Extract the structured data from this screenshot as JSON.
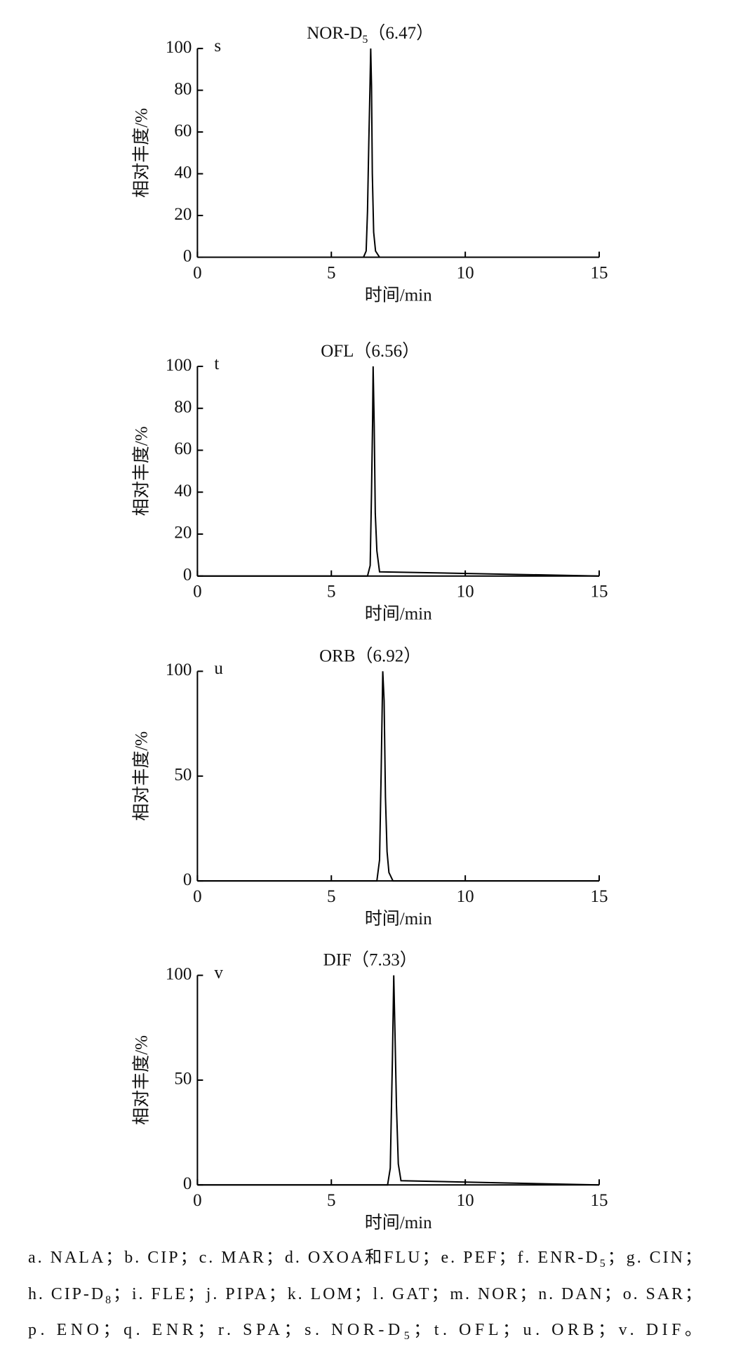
{
  "chart_data": [
    {
      "type": "line",
      "panel_label": "s",
      "title": [
        "NOR-D",
        "5",
        "（6.47）"
      ],
      "ylabel": "相对丰度/%",
      "xlabel": "时间/min",
      "x": [
        0,
        6.2,
        6.3,
        6.35,
        6.4,
        6.44,
        6.47,
        6.5,
        6.53,
        6.58,
        6.65,
        6.8,
        15
      ],
      "values": [
        0,
        0,
        3,
        22,
        56,
        80,
        100,
        82,
        40,
        12,
        3,
        0,
        0
      ],
      "color": "#000000",
      "xlim": [
        0,
        15
      ],
      "xticks": [
        0,
        5,
        10,
        15
      ],
      "ylim": [
        0,
        100
      ],
      "yticks": [
        0,
        20,
        40,
        60,
        80,
        100
      ]
    },
    {
      "type": "line",
      "panel_label": "t",
      "title": [
        "OFL（6.56）"
      ],
      "ylabel": "相对丰度/%",
      "xlabel": "时间/min",
      "x": [
        0,
        6.35,
        6.45,
        6.5,
        6.54,
        6.56,
        6.6,
        6.64,
        6.7,
        6.8,
        15
      ],
      "values": [
        0,
        0,
        5,
        40,
        74,
        100,
        72,
        30,
        12,
        2,
        0
      ],
      "color": "#000000",
      "xlim": [
        0,
        15
      ],
      "xticks": [
        0,
        5,
        10,
        15
      ],
      "ylim": [
        0,
        100
      ],
      "yticks": [
        0,
        20,
        40,
        60,
        80,
        100
      ]
    },
    {
      "type": "line",
      "panel_label": "u",
      "title": [
        "ORB（6.92）"
      ],
      "ylabel": "相对丰度/%",
      "xlabel": "时间/min",
      "x": [
        0,
        6.7,
        6.8,
        6.86,
        6.92,
        6.97,
        7.02,
        7.08,
        7.15,
        7.3,
        15
      ],
      "values": [
        0,
        0,
        10,
        52,
        100,
        86,
        40,
        14,
        4,
        0,
        0
      ],
      "color": "#000000",
      "xlim": [
        0,
        15
      ],
      "xticks": [
        0,
        5,
        10,
        15
      ],
      "ylim": [
        0,
        100
      ],
      "yticks": [
        0,
        50,
        100
      ]
    },
    {
      "type": "line",
      "panel_label": "v",
      "title": [
        "DIF（7.33）"
      ],
      "ylabel": "相对丰度/%",
      "xlabel": "时间/min",
      "x": [
        0,
        7.1,
        7.2,
        7.28,
        7.33,
        7.38,
        7.43,
        7.5,
        7.6,
        15
      ],
      "values": [
        0,
        0,
        8,
        60,
        100,
        70,
        38,
        10,
        2,
        0
      ],
      "color": "#000000",
      "xlim": [
        0,
        15
      ],
      "xticks": [
        0,
        5,
        10,
        15
      ],
      "ylim": [
        0,
        100
      ],
      "yticks": [
        0,
        50,
        100
      ]
    }
  ],
  "caption": [
    [
      "a. NALA；b. CIP；c. MAR；d. OXOA和FLU；e. PEF；f. ENR-D",
      "5",
      "；g. CIN；"
    ],
    [
      "h. CIP-D",
      "8",
      "；i. FLE；j. PIPA；k. LOM；l. GAT；m. NOR；n. DAN；o. SAR；"
    ],
    [
      "p. ENO；q. ENR；r. SPA；s. NOR-D",
      "5",
      "；t. OFL；u. ORB；v. DIF。"
    ]
  ]
}
